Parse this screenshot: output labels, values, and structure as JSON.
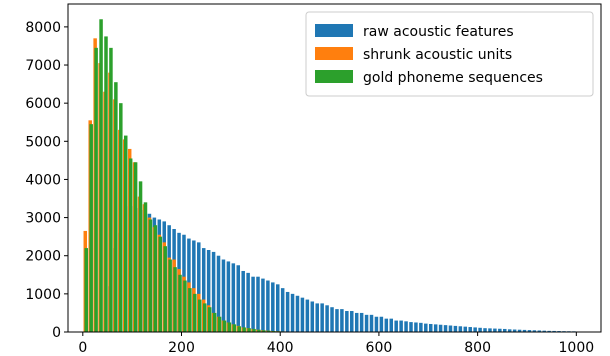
{
  "chart_data": {
    "type": "bar",
    "title": "",
    "xlabel": "",
    "ylabel": "",
    "xlim": [
      -30,
      1050
    ],
    "ylim": [
      0,
      8600
    ],
    "x_ticks": [
      0,
      200,
      400,
      600,
      800,
      1000
    ],
    "y_ticks": [
      0,
      1000,
      2000,
      3000,
      4000,
      5000,
      6000,
      7000,
      8000
    ],
    "legend_position": "top-right",
    "series": [
      {
        "name": "raw acoustic features",
        "color": "#1f77b4",
        "x": [
          55,
          65,
          75,
          85,
          95,
          105,
          115,
          125,
          135,
          145,
          155,
          165,
          175,
          185,
          195,
          205,
          215,
          225,
          235,
          245,
          255,
          265,
          275,
          285,
          295,
          305,
          315,
          325,
          335,
          345,
          355,
          365,
          375,
          385,
          395,
          405,
          415,
          425,
          435,
          445,
          455,
          465,
          475,
          485,
          495,
          505,
          515,
          525,
          535,
          545,
          555,
          565,
          575,
          585,
          595,
          605,
          615,
          625,
          635,
          645,
          655,
          665,
          675,
          685,
          695,
          705,
          715,
          725,
          735,
          745,
          755,
          765,
          775,
          785,
          795,
          805,
          815,
          825,
          835,
          845,
          855,
          865,
          875,
          885,
          895,
          905,
          915,
          925,
          935,
          945,
          955,
          965,
          975,
          985,
          995
        ],
        "values": [
          1200,
          2200,
          2600,
          3300,
          3300,
          3300,
          3250,
          3200,
          3100,
          3000,
          2950,
          2900,
          2800,
          2700,
          2600,
          2550,
          2450,
          2400,
          2350,
          2200,
          2150,
          2100,
          2000,
          1900,
          1850,
          1800,
          1750,
          1600,
          1550,
          1450,
          1450,
          1400,
          1350,
          1300,
          1250,
          1150,
          1050,
          1000,
          950,
          900,
          850,
          800,
          750,
          750,
          700,
          650,
          600,
          600,
          550,
          550,
          500,
          500,
          450,
          450,
          400,
          400,
          350,
          350,
          300,
          300,
          280,
          260,
          250,
          240,
          220,
          210,
          200,
          190,
          180,
          170,
          160,
          150,
          140,
          130,
          120,
          110,
          100,
          95,
          90,
          85,
          80,
          70,
          65,
          60,
          55,
          50,
          45,
          40,
          35,
          30,
          28,
          25,
          22,
          20,
          18
        ]
      },
      {
        "name": "shrunk acoustic units",
        "color": "#ff7f0e",
        "x": [
          5,
          15,
          25,
          35,
          45,
          55,
          65,
          75,
          85,
          95,
          105,
          115,
          125,
          135,
          145,
          155,
          165,
          175,
          185,
          195,
          205,
          215,
          225,
          235,
          245,
          255,
          265,
          275,
          285,
          295,
          305,
          315,
          325,
          335,
          345,
          355,
          365,
          375,
          385,
          395,
          405,
          415,
          425,
          435,
          445
        ],
        "values": [
          2650,
          5550,
          7700,
          7050,
          6300,
          6800,
          6100,
          5300,
          5050,
          4800,
          4450,
          3550,
          3350,
          3000,
          2750,
          2550,
          2350,
          1950,
          1900,
          1650,
          1450,
          1300,
          1150,
          1000,
          850,
          700,
          500,
          400,
          300,
          250,
          200,
          160,
          120,
          100,
          80,
          60,
          45,
          35,
          25,
          20,
          15,
          10,
          8,
          5,
          3
        ]
      },
      {
        "name": "gold phoneme sequences",
        "color": "#2ca02c",
        "x": [
          7,
          17,
          27,
          37,
          47,
          57,
          67,
          77,
          87,
          97,
          107,
          117,
          127,
          137,
          147,
          157,
          167,
          177,
          187,
          197,
          207,
          217,
          227,
          237,
          247,
          257,
          267,
          277,
          287,
          297,
          307,
          317,
          327,
          337,
          347,
          357,
          367,
          377,
          387,
          397,
          407,
          417,
          427,
          437,
          447
        ],
        "values": [
          2200,
          5450,
          7450,
          8200,
          7750,
          7450,
          6550,
          6000,
          5150,
          4550,
          4450,
          3950,
          3400,
          2950,
          2800,
          2500,
          2250,
          1900,
          1700,
          1500,
          1350,
          1150,
          1000,
          850,
          750,
          650,
          500,
          400,
          300,
          250,
          200,
          150,
          120,
          100,
          80,
          60,
          45,
          35,
          25,
          20,
          15,
          10,
          8,
          5,
          3
        ]
      }
    ]
  }
}
